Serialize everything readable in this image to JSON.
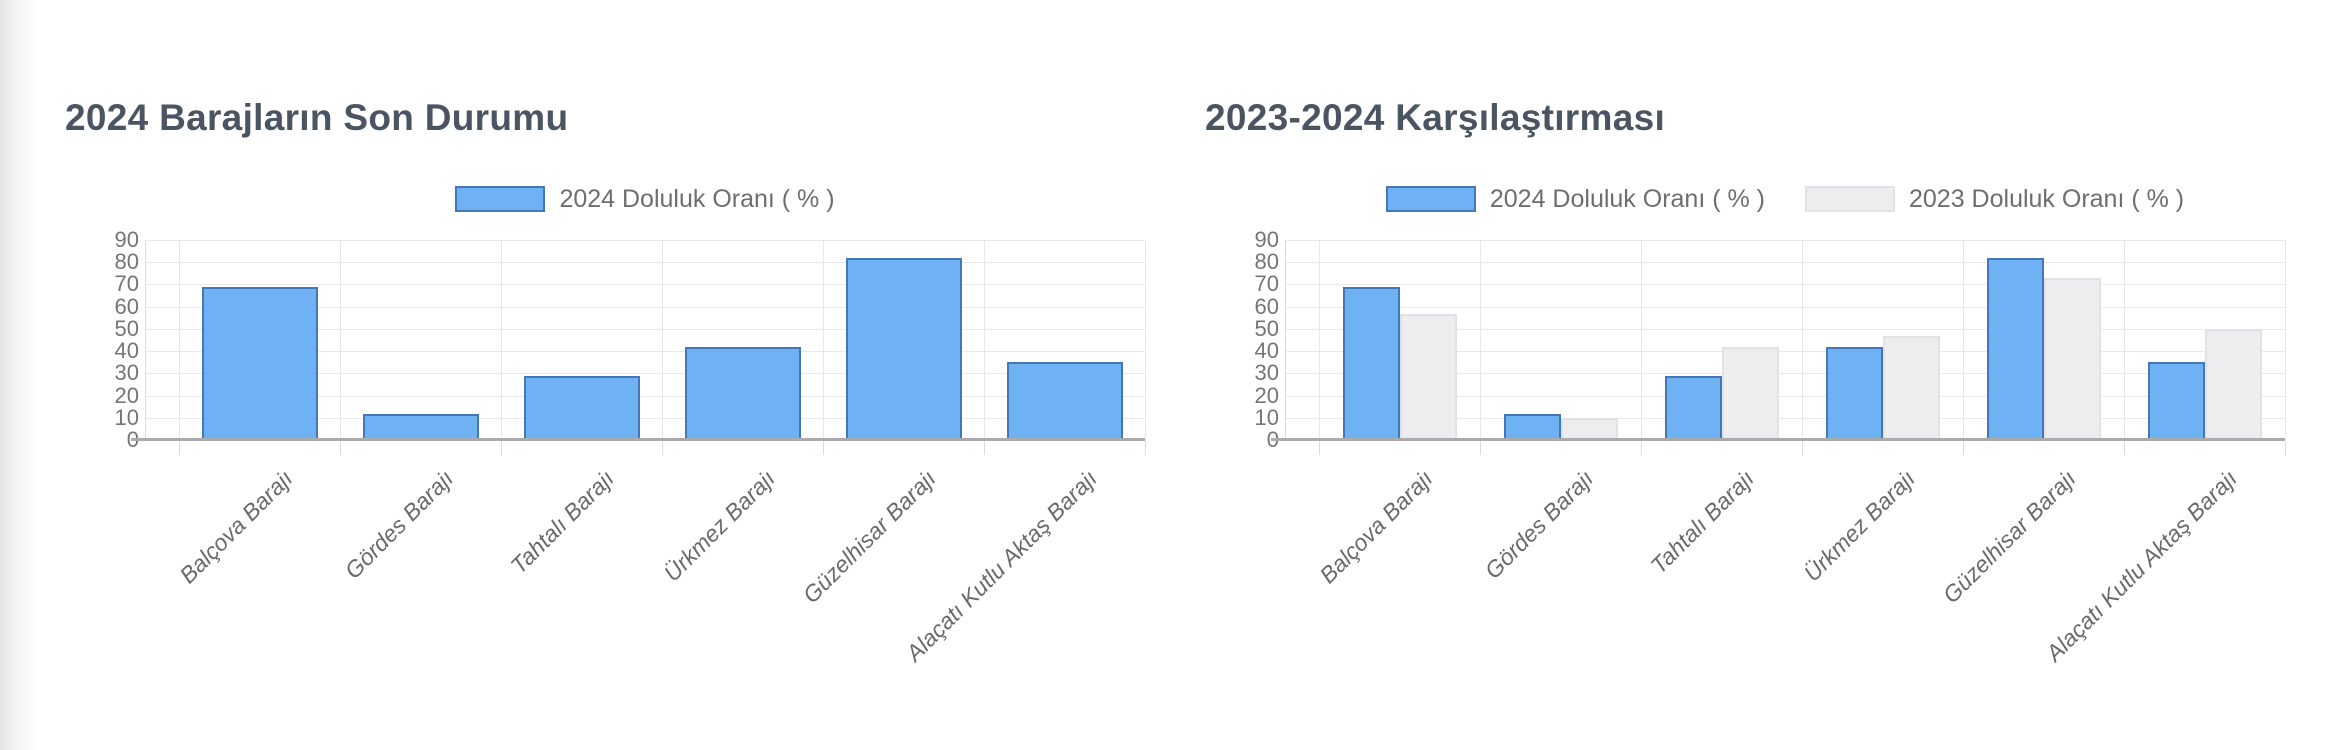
{
  "page": {
    "background": "#ffffff"
  },
  "chart_data": [
    {
      "type": "bar",
      "title": "2024 Barajların Son Durumu",
      "categories": [
        "Balçova Barajı",
        "Gördes Barajı",
        "Tahtalı Barajı",
        "Ürkmez Barajı",
        "Güzelhisar Barajı",
        "Alaçatı Kutlu Aktaş Barajı"
      ],
      "series": [
        {
          "name": "2024 Doluluk Oranı ( % )",
          "color": "#6FB2F4",
          "border_color": "#4377B7",
          "values": [
            68,
            11,
            28,
            41,
            81,
            34
          ]
        }
      ],
      "xlabel": "",
      "ylabel": "",
      "ylim": [
        0,
        90
      ],
      "yticks": [
        90,
        80,
        70,
        60,
        50,
        40,
        30,
        20,
        10,
        0
      ],
      "grid": true,
      "legend_position": "top"
    },
    {
      "type": "bar",
      "title": "2023-2024 Karşılaştırması",
      "categories": [
        "Balçova Barajı",
        "Gördes Barajı",
        "Tahtalı Barajı",
        "Ürkmez Barajı",
        "Güzelhisar Barajı",
        "Alaçatı Kutlu Aktaş Barajı"
      ],
      "series": [
        {
          "name": "2024 Doluluk Oranı ( % )",
          "color": "#6FB2F4",
          "border_color": "#4377B7",
          "values": [
            68,
            11,
            28,
            41,
            81,
            34
          ]
        },
        {
          "name": "2023 Doluluk Oranı ( % )",
          "color": "#EDEDEF",
          "border_color": "#E2E2E5",
          "values": [
            56,
            9,
            41,
            46,
            72,
            49
          ]
        }
      ],
      "xlabel": "",
      "ylabel": "",
      "ylim": [
        0,
        90
      ],
      "yticks": [
        90,
        80,
        70,
        60,
        50,
        40,
        30,
        20,
        10,
        0
      ],
      "grid": true,
      "legend_position": "top"
    }
  ]
}
